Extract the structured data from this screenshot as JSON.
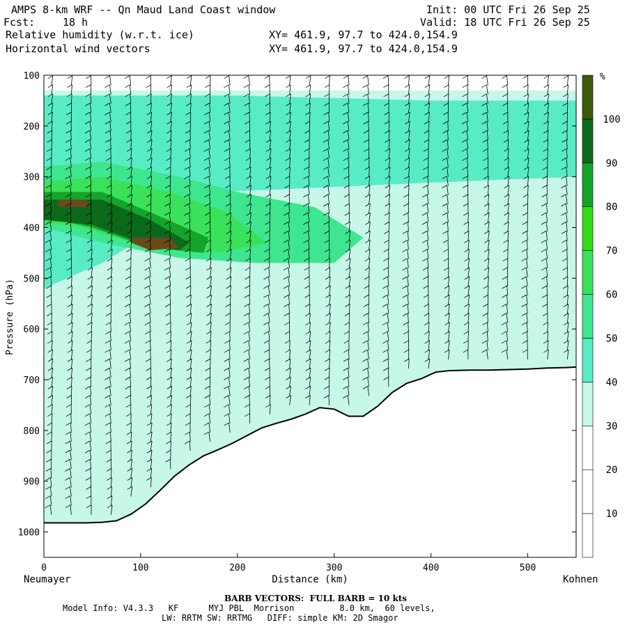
{
  "header": {
    "title": "AMPS 8-km WRF -- Qn Maud Land Coast window",
    "init": "Init: 00 UTC Fri 26 Sep 25",
    "fcst_label": "Fcst:",
    "fcst_value": "18 h",
    "valid": "Valid: 18 UTC Fri 26 Sep 25",
    "field1": "Relative humidity (w.r.t. ice)",
    "field2": "Horizontal wind vectors",
    "xy1": "XY= 461.9, 97.7 to 424.0,154.9",
    "xy2": "XY= 461.9, 97.7 to 424.0,154.9"
  },
  "footer": {
    "barb_note": "BARB VECTORS:  FULL BARB = 10 kts",
    "model_line1": "Model Info: V4.3.3   KF      MYJ PBL  Morrison         8.0 km,  60 levels,",
    "model_line2": "LW: RRTM SW: RRTMG   DIFF: simple KM: 2D Smagor"
  },
  "colors": {
    "c0_30": "#ffffff",
    "c30_40": "#c6f7e9",
    "c40_50": "#58ecc5",
    "c50_60": "#3ee68f",
    "c60_70": "#39e25a",
    "c70_80": "#33dd18",
    "c80_90": "#14a42a",
    "c90_100": "#0a6a1a",
    "c100": "#3d5a0a",
    "c110": "#6b4a1a",
    "terrain": "#000000"
  },
  "chart_data": {
    "type": "heatmap",
    "xlabel": "Distance (km)",
    "ylabel": "Pressure (hPa)",
    "x_start_label": "Neumayer",
    "x_end_label": "Kohnen",
    "xlim": [
      0,
      550
    ],
    "ylim": [
      1050,
      100
    ],
    "xticks": [
      0,
      100,
      200,
      300,
      400,
      500
    ],
    "yticks": [
      100,
      200,
      300,
      400,
      500,
      600,
      700,
      800,
      900,
      1000
    ],
    "colorbar_unit": "%",
    "colorbar_levels": [
      10,
      20,
      30,
      40,
      50,
      60,
      70,
      80,
      90,
      100
    ],
    "terrain_surface_hpa": {
      "x": [
        0,
        15,
        30,
        45,
        60,
        75,
        90,
        105,
        120,
        135,
        150,
        165,
        180,
        195,
        210,
        225,
        240,
        255,
        270,
        285,
        300,
        315,
        330,
        345,
        360,
        375,
        390,
        405,
        420,
        440,
        460,
        480,
        500,
        520,
        540,
        550
      ],
      "p": [
        982,
        982,
        982,
        982,
        981,
        978,
        965,
        945,
        918,
        890,
        868,
        850,
        838,
        825,
        810,
        795,
        786,
        778,
        768,
        755,
        758,
        772,
        772,
        752,
        725,
        707,
        698,
        685,
        682,
        681,
        681,
        680,
        679,
        677,
        676,
        675
      ]
    },
    "rh_regions": [
      {
        "level": "30-40",
        "x": [
          0,
          550,
          550,
          0
        ],
        "p": [
          130,
          130,
          982,
          982
        ]
      },
      {
        "level": "40-50",
        "x": [
          0,
          200,
          400,
          550,
          550,
          420,
          300,
          180,
          60,
          0
        ],
        "p": [
          140,
          140,
          150,
          150,
          300,
          310,
          320,
          330,
          470,
          520
        ]
      },
      {
        "level": "50-60",
        "x": [
          0,
          60,
          140,
          200,
          280,
          330,
          300,
          220,
          140,
          60,
          0
        ],
        "p": [
          280,
          270,
          300,
          330,
          360,
          420,
          470,
          470,
          460,
          430,
          400
        ]
      },
      {
        "level": "60-70",
        "x": [
          0,
          60,
          130,
          190,
          230,
          180,
          110,
          40,
          0
        ],
        "p": [
          310,
          300,
          330,
          370,
          430,
          450,
          440,
          400,
          390
        ]
      },
      {
        "level": "80-90",
        "x": [
          0,
          60,
          110,
          170,
          165,
          110,
          50,
          0
        ],
        "p": [
          330,
          330,
          370,
          420,
          450,
          440,
          400,
          380
        ]
      },
      {
        "level": "90-100",
        "x": [
          0,
          60,
          110,
          150,
          140,
          100,
          50,
          0
        ],
        "p": [
          345,
          345,
          385,
          430,
          445,
          430,
          395,
          385
        ]
      },
      {
        "level": "110",
        "x": [
          90,
          130,
          140,
          110,
          90
        ],
        "p": [
          420,
          420,
          440,
          445,
          430
        ]
      },
      {
        "level": "110",
        "x": [
          15,
          45,
          45,
          15
        ],
        "p": [
          345,
          345,
          360,
          360
        ]
      }
    ],
    "wind_barbs": "dense grid of horizontal wind barbs over the cross-section"
  }
}
